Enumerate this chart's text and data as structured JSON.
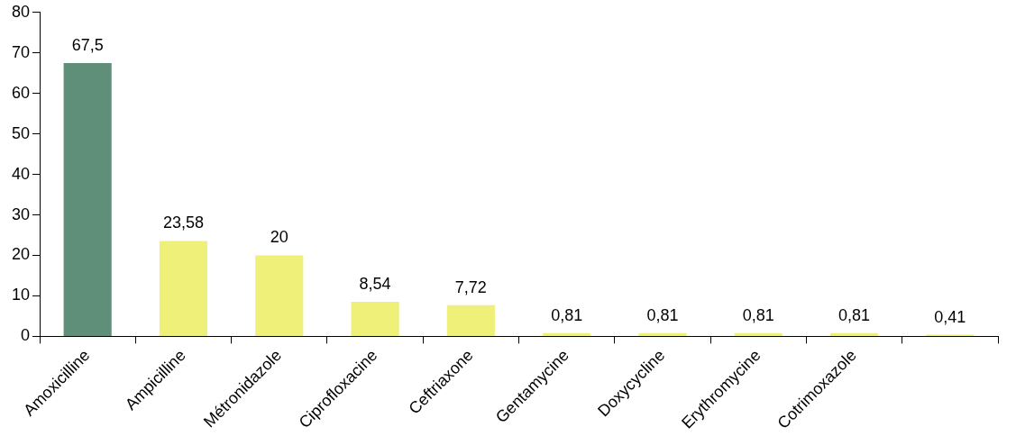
{
  "chart_data": {
    "type": "bar",
    "categories": [
      "Amoxicilline",
      "Ampicilline",
      "Métronidazole",
      "Ciprofloxacine",
      "Ceftriaxone",
      "Gentamycine",
      "Doxycycline",
      "Erythromycine",
      "Cotrimoxazole",
      null
    ],
    "values": [
      67.5,
      23.58,
      20,
      8.54,
      7.72,
      0.81,
      0.81,
      0.81,
      0.81,
      0.41
    ],
    "value_labels": [
      "67,5",
      "23,58",
      "20",
      "8,54",
      "7,72",
      "0,81",
      "0,81",
      "0,81",
      "0,81",
      "0,41"
    ],
    "colors": [
      "#5f8f78",
      "#eef07a",
      "#eef07a",
      "#eef07a",
      "#eef07a",
      "#eef07a",
      "#eef07a",
      "#eef07a",
      "#eef07a",
      "#eef07a"
    ],
    "ylim": [
      0,
      80
    ],
    "yticks": [
      0,
      10,
      20,
      30,
      40,
      50,
      60,
      70,
      80
    ],
    "grid": false,
    "legend": false
  }
}
